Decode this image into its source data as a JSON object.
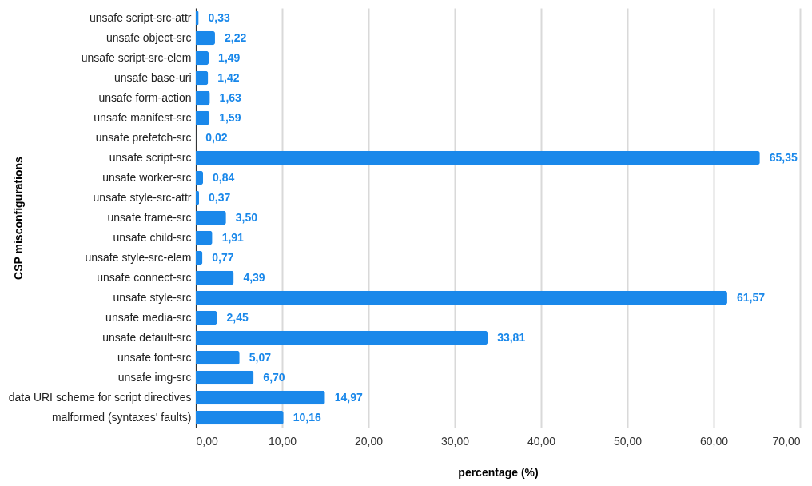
{
  "chart_data": {
    "type": "bar",
    "orientation": "horizontal",
    "xlabel": "percentage (%)",
    "ylabel": "CSP misconfigurations",
    "categories": [
      "unsafe script-src-attr",
      "unsafe object-src",
      "unsafe script-src-elem",
      "unsafe base-uri",
      "unsafe form-action",
      "unsafe manifest-src",
      "unsafe prefetch-src",
      "unsafe script-src",
      "unsafe worker-src",
      "unsafe style-src-attr",
      "unsafe frame-src",
      "unsafe child-src",
      "unsafe style-src-elem",
      "unsafe connect-src",
      "unsafe style-src",
      "unsafe  media-src",
      "unsafe default-src",
      "unsafe font-src",
      "unsafe img-src",
      "data URI scheme for script directives",
      "malformed (syntaxes' faults)"
    ],
    "values": [
      0.33,
      2.22,
      1.49,
      1.42,
      1.63,
      1.59,
      0.02,
      65.35,
      0.84,
      0.37,
      3.5,
      1.91,
      0.77,
      4.39,
      61.57,
      2.45,
      33.81,
      5.07,
      6.7,
      14.97,
      10.16
    ],
    "value_labels": [
      "0,33",
      "2,22",
      "1,49",
      "1,42",
      "1,63",
      "1,59",
      "0,02",
      "65,35",
      "0,84",
      "0,37",
      "3,50",
      "1,91",
      "0,77",
      "4,39",
      "61,57",
      "2,45",
      "33,81",
      "5,07",
      "6,70",
      "14,97",
      "10,16"
    ],
    "color": "#1a88ea",
    "xlim": [
      0,
      70
    ],
    "xticks": [
      {
        "value": 0,
        "label": "0,00"
      },
      {
        "value": 10,
        "label": "10,00"
      },
      {
        "value": 20,
        "label": "20,00"
      },
      {
        "value": 30,
        "label": "30,00"
      },
      {
        "value": 40,
        "label": "40,00"
      },
      {
        "value": 50,
        "label": "50,00"
      },
      {
        "value": 60,
        "label": "60,00"
      },
      {
        "value": 70,
        "label": "70,00"
      }
    ],
    "grid": "x"
  }
}
